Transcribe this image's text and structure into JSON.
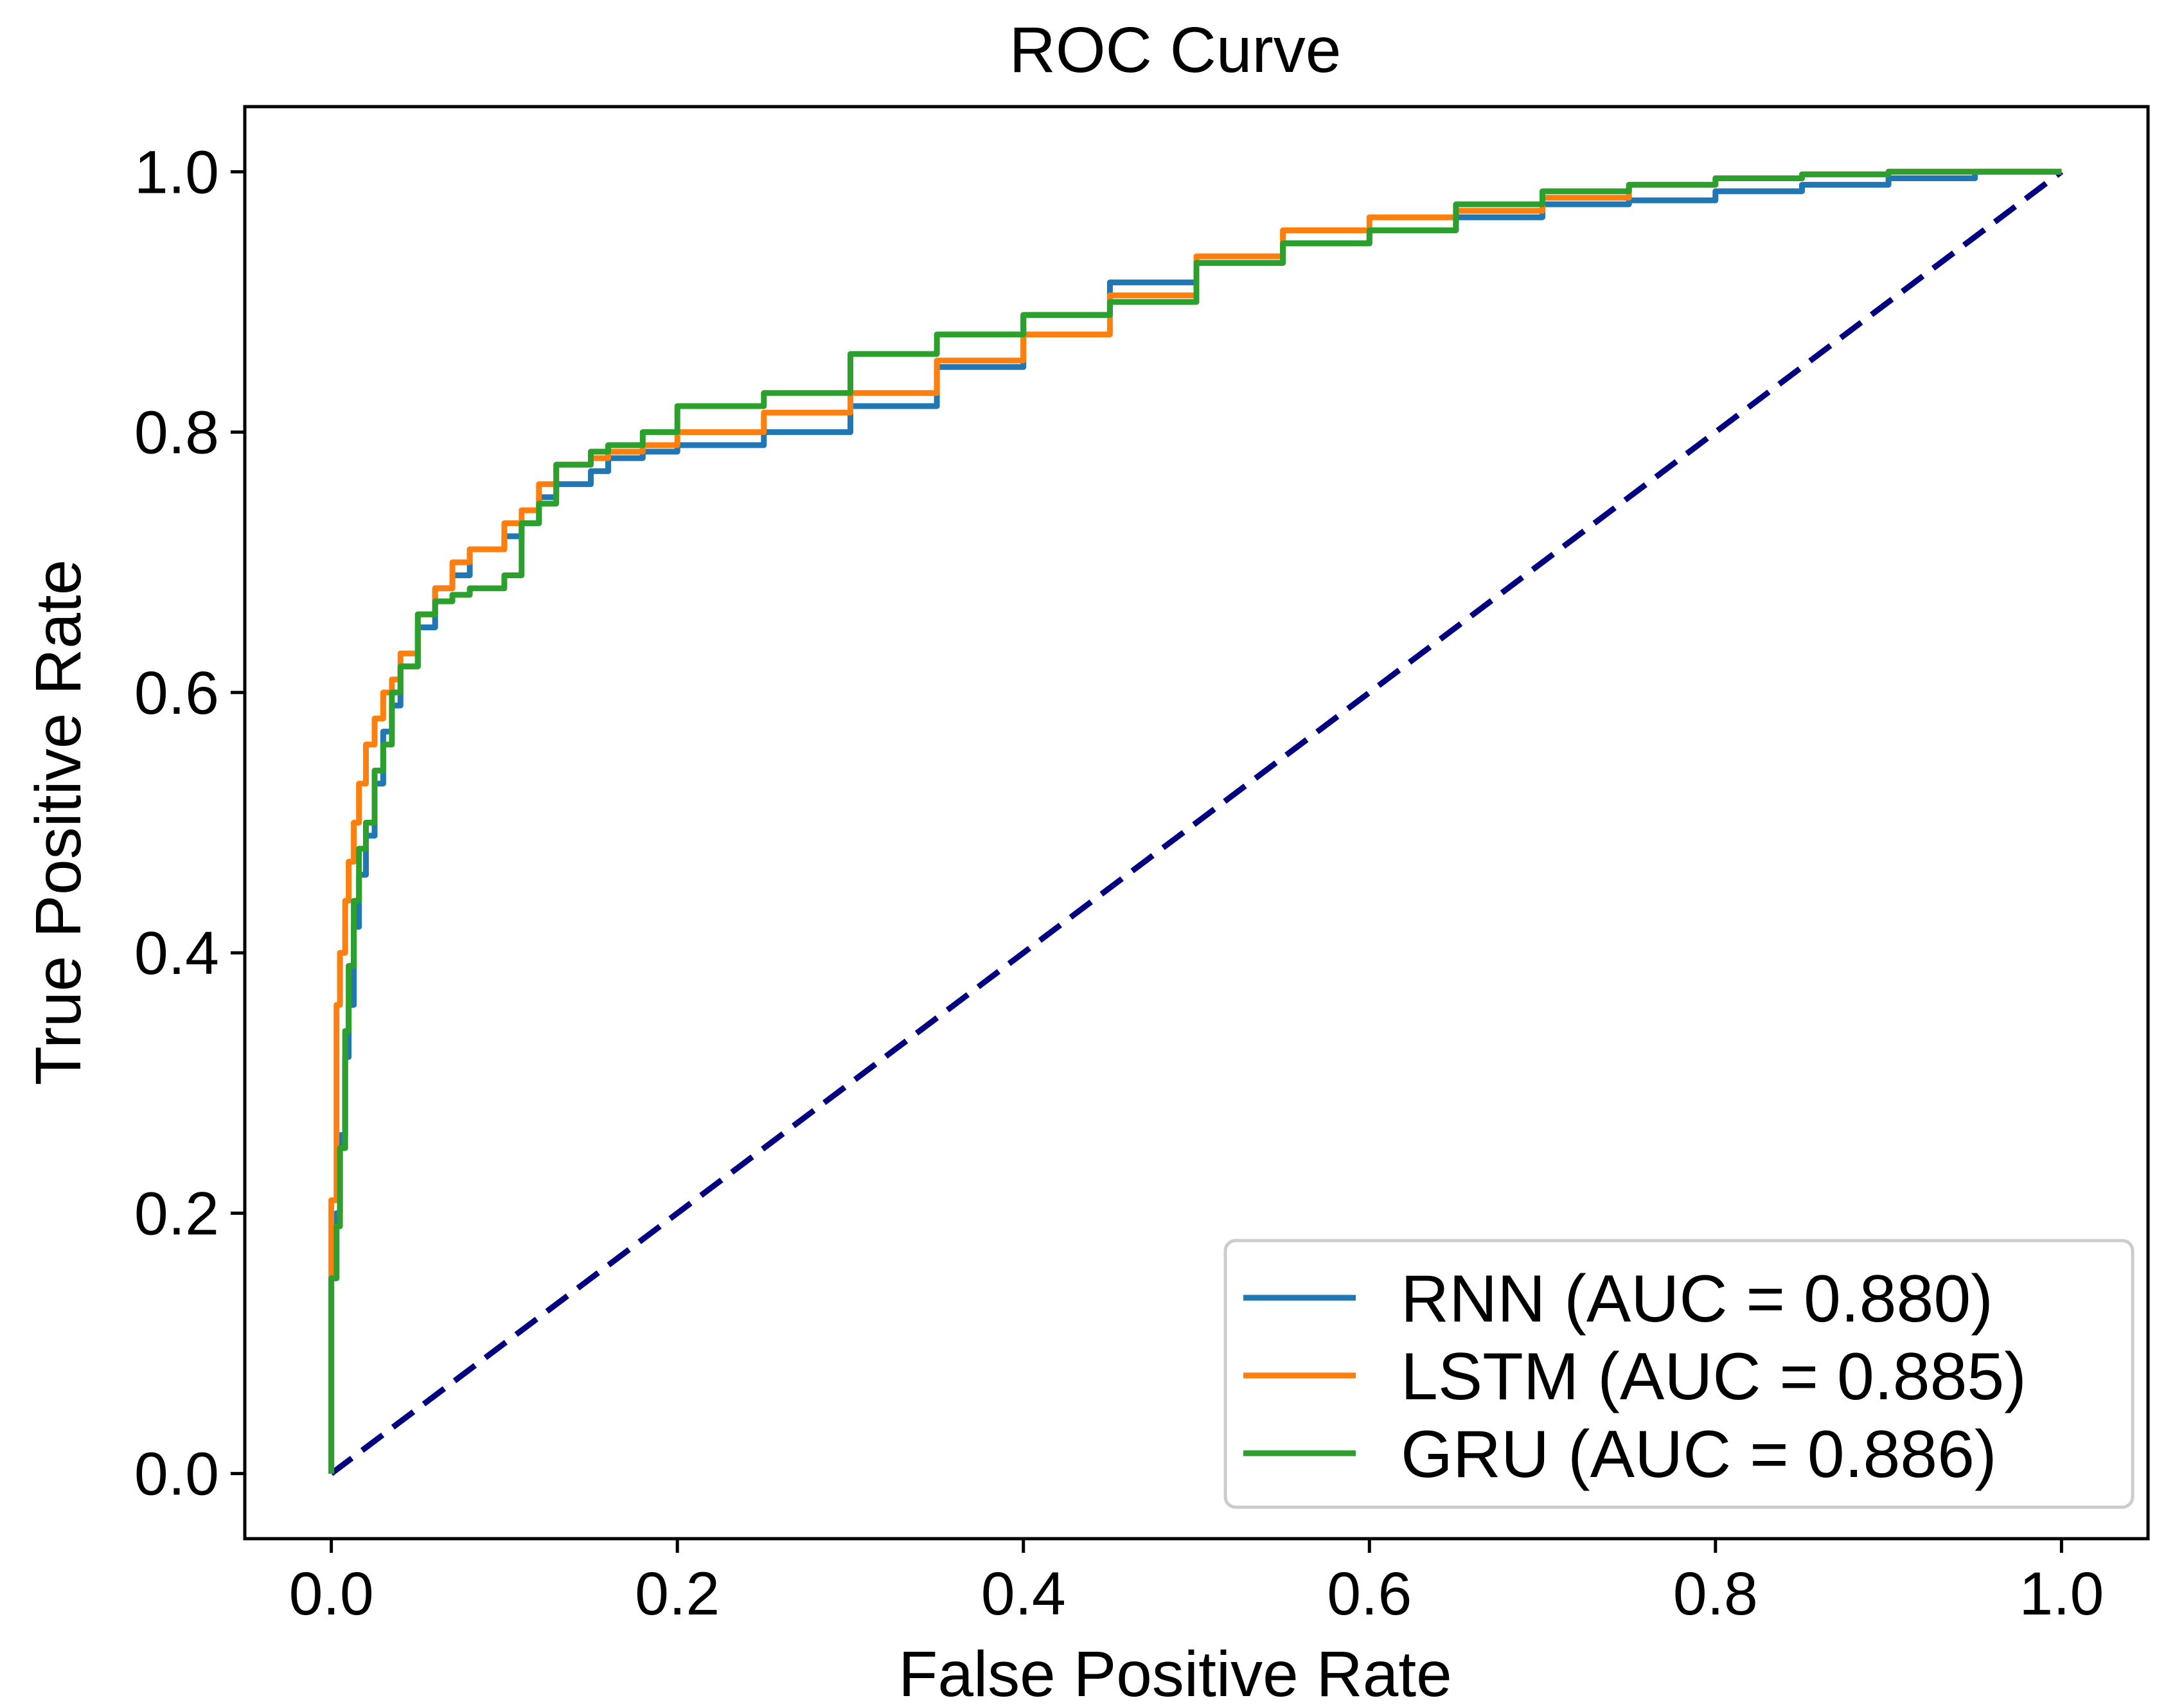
{
  "chart_data": {
    "type": "line",
    "title": "ROC Curve",
    "xlabel": "False Positive Rate",
    "ylabel": "True Positive Rate",
    "xlim": [
      -0.05,
      1.05
    ],
    "ylim": [
      -0.05,
      1.05
    ],
    "xticks": [
      0.0,
      0.2,
      0.4,
      0.6,
      0.8,
      1.0
    ],
    "yticks": [
      0.0,
      0.2,
      0.4,
      0.6,
      0.8,
      1.0
    ],
    "xtick_labels": [
      "0.0",
      "0.2",
      "0.4",
      "0.6",
      "0.8",
      "1.0"
    ],
    "ytick_labels": [
      "0.0",
      "0.2",
      "0.4",
      "0.6",
      "0.8",
      "1.0"
    ],
    "grid": false,
    "legend_position": "lower-right",
    "series": [
      {
        "name": "RNN (AUC = 0.880)",
        "color": "#1f77b4",
        "x": [
          0.0,
          0.0,
          0.003,
          0.005,
          0.008,
          0.01,
          0.013,
          0.016,
          0.02,
          0.025,
          0.03,
          0.035,
          0.04,
          0.05,
          0.06,
          0.07,
          0.08,
          0.1,
          0.11,
          0.12,
          0.13,
          0.15,
          0.16,
          0.18,
          0.2,
          0.25,
          0.3,
          0.35,
          0.4,
          0.45,
          0.5,
          0.55,
          0.6,
          0.65,
          0.7,
          0.75,
          0.8,
          0.85,
          0.9,
          0.95,
          1.0
        ],
        "y": [
          0.0,
          0.15,
          0.2,
          0.26,
          0.32,
          0.36,
          0.42,
          0.46,
          0.49,
          0.53,
          0.57,
          0.59,
          0.62,
          0.65,
          0.68,
          0.69,
          0.71,
          0.72,
          0.73,
          0.75,
          0.76,
          0.77,
          0.78,
          0.785,
          0.79,
          0.8,
          0.82,
          0.85,
          0.89,
          0.915,
          0.93,
          0.945,
          0.955,
          0.965,
          0.975,
          0.978,
          0.985,
          0.99,
          0.995,
          1.0,
          1.0
        ]
      },
      {
        "name": "LSTM (AUC = 0.885)",
        "color": "#ff7f0e",
        "x": [
          0.0,
          0.0,
          0.003,
          0.005,
          0.008,
          0.01,
          0.013,
          0.016,
          0.02,
          0.025,
          0.03,
          0.035,
          0.04,
          0.05,
          0.06,
          0.07,
          0.08,
          0.1,
          0.11,
          0.12,
          0.13,
          0.15,
          0.16,
          0.18,
          0.2,
          0.25,
          0.3,
          0.35,
          0.4,
          0.45,
          0.5,
          0.55,
          0.6,
          0.65,
          0.7,
          0.75,
          0.8,
          0.85,
          0.9,
          0.95,
          1.0
        ],
        "y": [
          0.0,
          0.21,
          0.36,
          0.4,
          0.44,
          0.47,
          0.5,
          0.53,
          0.56,
          0.58,
          0.6,
          0.61,
          0.63,
          0.66,
          0.68,
          0.7,
          0.71,
          0.73,
          0.74,
          0.76,
          0.775,
          0.78,
          0.785,
          0.79,
          0.8,
          0.815,
          0.83,
          0.855,
          0.875,
          0.905,
          0.935,
          0.955,
          0.965,
          0.97,
          0.98,
          0.99,
          0.995,
          0.998,
          1.0,
          1.0,
          1.0
        ]
      },
      {
        "name": "GRU (AUC = 0.886)",
        "color": "#2ca02c",
        "x": [
          0.0,
          0.0,
          0.003,
          0.005,
          0.008,
          0.01,
          0.013,
          0.016,
          0.02,
          0.025,
          0.03,
          0.035,
          0.04,
          0.05,
          0.06,
          0.07,
          0.08,
          0.1,
          0.11,
          0.12,
          0.13,
          0.15,
          0.16,
          0.18,
          0.2,
          0.25,
          0.3,
          0.35,
          0.4,
          0.45,
          0.5,
          0.55,
          0.6,
          0.65,
          0.7,
          0.75,
          0.8,
          0.85,
          0.9,
          0.95,
          1.0
        ],
        "y": [
          0.0,
          0.15,
          0.19,
          0.25,
          0.34,
          0.39,
          0.44,
          0.48,
          0.5,
          0.54,
          0.56,
          0.6,
          0.62,
          0.66,
          0.67,
          0.675,
          0.68,
          0.69,
          0.73,
          0.745,
          0.775,
          0.785,
          0.79,
          0.8,
          0.82,
          0.83,
          0.86,
          0.875,
          0.89,
          0.9,
          0.93,
          0.945,
          0.955,
          0.975,
          0.985,
          0.99,
          0.995,
          0.998,
          1.0,
          1.0,
          1.0
        ]
      }
    ],
    "reference_line": {
      "x": [
        0.0,
        1.0
      ],
      "y": [
        0.0,
        1.0
      ],
      "color": "#000080",
      "style": "dashed"
    }
  }
}
